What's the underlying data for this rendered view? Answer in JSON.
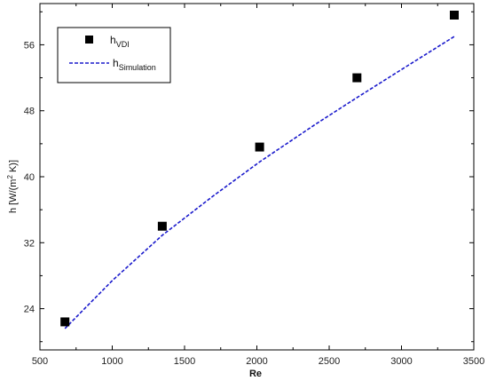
{
  "chart_data": {
    "type": "scatter",
    "xlabel": "Re",
    "ylabel": "h [W/(m",
    "ylabel_sup": "2",
    "ylabel_end": " K)]",
    "xlim": [
      500,
      3500
    ],
    "ylim": [
      19,
      61
    ],
    "x_ticks": [
      500,
      1000,
      1500,
      2000,
      2500,
      3000,
      3500
    ],
    "y_ticks": [
      24,
      32,
      40,
      48,
      56
    ],
    "grid": false,
    "legend_position": "top-left",
    "series": [
      {
        "name": "hVDI",
        "legend_main": "h",
        "legend_sub": "VDI",
        "type": "scatter",
        "marker": "square",
        "color": "#000000",
        "x": [
          673,
          1346,
          2019,
          2692,
          3365
        ],
        "y": [
          22.4,
          34.0,
          43.6,
          52.0,
          59.6
        ]
      },
      {
        "name": "hSimulation",
        "legend_main": "h",
        "legend_sub": "Simulation",
        "type": "line",
        "dash": true,
        "color": "#1a1acc",
        "x": [
          673,
          1000,
          1346,
          1700,
          2019,
          2400,
          2692,
          3000,
          3365
        ],
        "y": [
          21.6,
          27.4,
          32.9,
          37.7,
          41.8,
          46.3,
          49.6,
          53.0,
          57.0
        ]
      }
    ]
  }
}
